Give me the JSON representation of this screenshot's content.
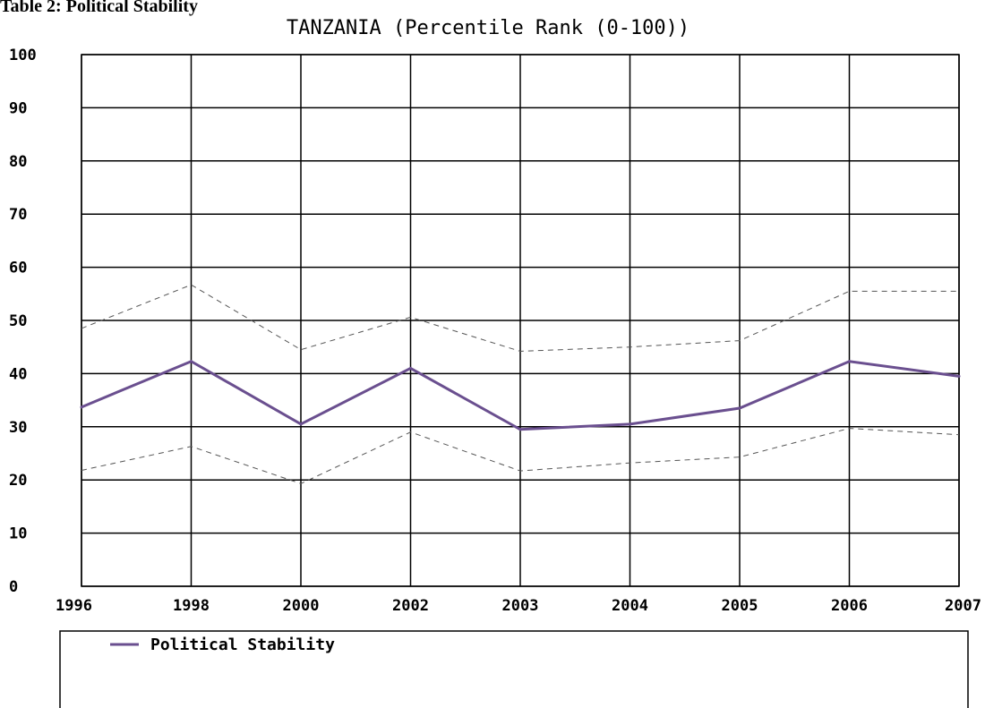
{
  "caption": "Table 2: Political Stability",
  "chart_data": {
    "type": "line",
    "title": "TANZANIA (Percentile Rank (0-100))",
    "categories": [
      "1996",
      "1998",
      "2000",
      "2002",
      "2003",
      "2004",
      "2005",
      "2006",
      "2007"
    ],
    "ylim": [
      0,
      100
    ],
    "yticks": [
      0,
      10,
      20,
      30,
      40,
      50,
      60,
      70,
      80,
      90,
      100
    ],
    "grid": true,
    "legend_position": "bottom",
    "series": [
      {
        "name": "Political Stability",
        "values": [
          33.7,
          42.3,
          30.5,
          41.0,
          29.5,
          30.5,
          33.5,
          42.3,
          39.5
        ],
        "color": "#6a4f8f",
        "style": "solid"
      },
      {
        "values": [
          48.5,
          56.7,
          44.5,
          50.6,
          44.2,
          45.0,
          46.2,
          55.5,
          55.5
        ],
        "color": "#555555",
        "style": "dashed"
      },
      {
        "values": [
          21.8,
          26.3,
          19.3,
          29.0,
          21.7,
          23.2,
          24.3,
          29.7,
          28.5
        ],
        "color": "#555555",
        "style": "dashed"
      }
    ]
  }
}
